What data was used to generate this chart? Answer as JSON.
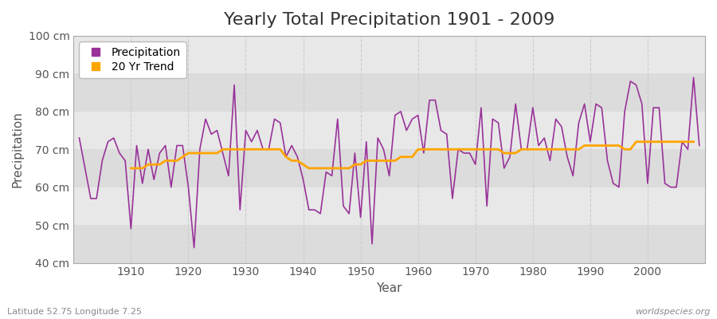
{
  "title": "Yearly Total Precipitation 1901 - 2009",
  "xlabel": "Year",
  "ylabel": "Precipitation",
  "lat_lon_label": "Latitude 52.75 Longitude 7.25",
  "watermark": "worldspecies.org",
  "bg_color": "#f5f5f5",
  "plot_bg_color": "#e8e8e8",
  "band_color_light": "#ebebeb",
  "band_color_dark": "#e0e0e0",
  "precip_color": "#993399",
  "trend_color": "#FFA500",
  "years": [
    1901,
    1902,
    1903,
    1904,
    1905,
    1906,
    1907,
    1908,
    1909,
    1910,
    1911,
    1912,
    1913,
    1914,
    1915,
    1916,
    1917,
    1918,
    1919,
    1920,
    1921,
    1922,
    1923,
    1924,
    1925,
    1926,
    1927,
    1928,
    1929,
    1930,
    1931,
    1932,
    1933,
    1934,
    1935,
    1936,
    1937,
    1938,
    1939,
    1940,
    1941,
    1942,
    1943,
    1944,
    1945,
    1946,
    1947,
    1948,
    1949,
    1950,
    1951,
    1952,
    1953,
    1954,
    1955,
    1956,
    1957,
    1958,
    1959,
    1960,
    1961,
    1962,
    1963,
    1964,
    1965,
    1966,
    1967,
    1968,
    1969,
    1970,
    1971,
    1972,
    1973,
    1974,
    1975,
    1976,
    1977,
    1978,
    1979,
    1980,
    1981,
    1982,
    1983,
    1984,
    1985,
    1986,
    1987,
    1988,
    1989,
    1990,
    1991,
    1992,
    1993,
    1994,
    1995,
    1996,
    1997,
    1998,
    1999,
    2000,
    2001,
    2002,
    2003,
    2004,
    2005,
    2006,
    2007,
    2008,
    2009
  ],
  "precipitation": [
    73,
    65,
    57,
    57,
    67,
    72,
    73,
    69,
    67,
    49,
    71,
    61,
    70,
    62,
    69,
    71,
    60,
    71,
    71,
    60,
    44,
    70,
    78,
    74,
    75,
    69,
    63,
    87,
    54,
    75,
    72,
    75,
    70,
    70,
    78,
    77,
    68,
    71,
    68,
    62,
    54,
    54,
    53,
    64,
    63,
    78,
    55,
    53,
    69,
    52,
    72,
    45,
    73,
    70,
    63,
    79,
    80,
    75,
    78,
    79,
    69,
    83,
    83,
    75,
    74,
    57,
    70,
    69,
    69,
    66,
    81,
    55,
    78,
    77,
    65,
    68,
    82,
    70,
    70,
    81,
    71,
    73,
    67,
    78,
    76,
    68,
    63,
    77,
    82,
    72,
    82,
    81,
    67,
    61,
    60,
    80,
    88,
    87,
    82,
    61,
    81,
    81,
    61,
    60,
    60,
    72,
    70,
    89,
    71
  ],
  "trend": [
    null,
    null,
    null,
    null,
    null,
    null,
    null,
    null,
    null,
    65,
    65,
    65,
    66,
    66,
    66,
    67,
    67,
    67,
    68,
    69,
    69,
    69,
    69,
    69,
    69,
    70,
    70,
    70,
    70,
    70,
    70,
    70,
    70,
    70,
    70,
    70,
    68,
    67,
    67,
    66,
    65,
    65,
    65,
    65,
    65,
    65,
    65,
    65,
    66,
    66,
    67,
    67,
    67,
    67,
    67,
    67,
    68,
    68,
    68,
    70,
    70,
    70,
    70,
    70,
    70,
    70,
    70,
    70,
    70,
    70,
    70,
    70,
    70,
    70,
    69,
    69,
    69,
    70,
    70,
    70,
    70,
    70,
    70,
    70,
    70,
    70,
    70,
    70,
    71,
    71,
    71,
    71,
    71,
    71,
    71,
    70,
    70,
    72,
    72,
    72,
    72,
    72,
    72,
    72,
    72,
    72,
    72,
    72,
    null
  ],
  "ylim": [
    40,
    100
  ],
  "yticks": [
    40,
    50,
    60,
    70,
    80,
    90,
    100
  ],
  "ytick_labels": [
    "40 cm",
    "50 cm",
    "60 cm",
    "70 cm",
    "80 cm",
    "90 cm",
    "100 cm"
  ],
  "xlim": [
    1900,
    2010
  ],
  "xticks": [
    1910,
    1920,
    1930,
    1940,
    1950,
    1960,
    1970,
    1980,
    1990,
    2000
  ],
  "title_fontsize": 16,
  "axis_label_fontsize": 11,
  "tick_fontsize": 10,
  "legend_fontsize": 10,
  "grid_color": "#cccccc",
  "grid_linestyle": "--",
  "grid_linewidth": 0.8
}
